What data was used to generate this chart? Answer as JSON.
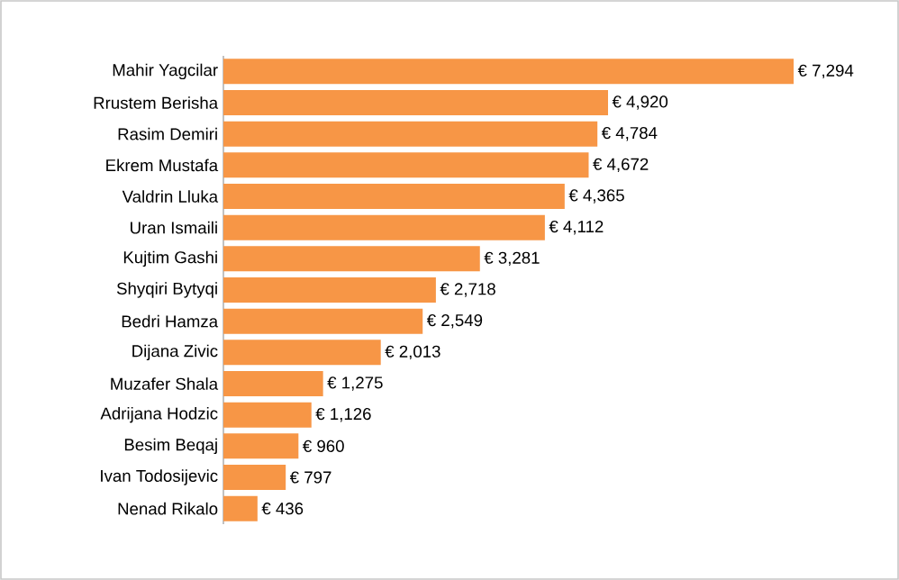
{
  "chart_data": {
    "type": "bar",
    "orientation": "horizontal",
    "color": "#f79646",
    "categories": [
      "Mahir Yagcilar",
      "Rrustem Berisha",
      "Rasim Demiri",
      "Ekrem Mustafa",
      "Valdrin Lluka",
      "Uran Ismaili",
      "Kujtim Gashi",
      "Shyqiri Bytyqi",
      "Bedri Hamza",
      "Dijana Zivic",
      "Muzafer Shala",
      "Adrijana Hodzic",
      "Besim Beqaj",
      "Ivan Todosijevic",
      "Nenad Rikalo"
    ],
    "values": [
      7294,
      4920,
      4784,
      4672,
      4365,
      4112,
      3281,
      2718,
      2549,
      2013,
      1275,
      1126,
      960,
      797,
      436
    ],
    "value_labels": [
      "€ 7,294",
      "€ 4,920",
      "€ 4,784",
      "€ 4,672",
      "€ 4,365",
      "€ 4,112",
      "€ 3,281",
      "€ 2,718",
      "€ 2,549",
      "€ 2,013",
      "€ 1,275",
      "€ 1,126",
      "€ 960",
      "€ 797",
      "€ 436"
    ]
  }
}
